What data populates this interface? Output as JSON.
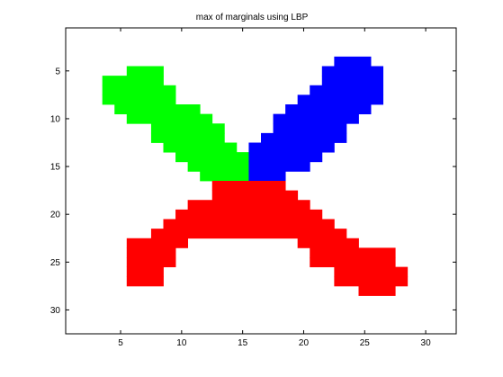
{
  "chart_data": {
    "type": "heatmap",
    "title": "max of marginals using LBP",
    "xlabel": "",
    "ylabel": "",
    "xlim": [
      0.5,
      32.5
    ],
    "ylim": [
      32.5,
      0.5
    ],
    "y_axis_direction": "reversed",
    "grid": false,
    "legend": "none",
    "xticks": [
      5,
      10,
      15,
      20,
      25,
      30
    ],
    "yticks": [
      5,
      10,
      15,
      20,
      25,
      30
    ],
    "colors": {
      "1": "#00ff00",
      "2": "#0000ff",
      "3": "#ff0000"
    },
    "regions": [
      {
        "label": 1,
        "runs": [
          [
            5,
            6,
            8
          ],
          [
            6,
            4,
            8
          ],
          [
            7,
            4,
            9
          ],
          [
            8,
            4,
            9
          ],
          [
            9,
            5,
            11
          ],
          [
            10,
            6,
            12
          ],
          [
            11,
            8,
            13
          ],
          [
            12,
            8,
            13
          ],
          [
            13,
            9,
            14
          ],
          [
            14,
            10,
            16
          ],
          [
            15,
            11,
            16
          ],
          [
            16,
            12,
            16
          ]
        ]
      },
      {
        "label": 2,
        "runs": [
          [
            4,
            23,
            25
          ],
          [
            5,
            22,
            26
          ],
          [
            6,
            22,
            26
          ],
          [
            7,
            21,
            26
          ],
          [
            8,
            20,
            26
          ],
          [
            9,
            19,
            25
          ],
          [
            10,
            18,
            24
          ],
          [
            11,
            18,
            23
          ],
          [
            12,
            17,
            23
          ],
          [
            13,
            16,
            22
          ],
          [
            14,
            16,
            21
          ],
          [
            15,
            16,
            20
          ],
          [
            16,
            16,
            18
          ]
        ]
      },
      {
        "label": 3,
        "runs": [
          [
            17,
            13,
            18
          ],
          [
            18,
            13,
            19
          ],
          [
            19,
            11,
            20
          ],
          [
            20,
            10,
            21
          ],
          [
            21,
            9,
            22
          ],
          [
            22,
            8,
            23
          ],
          [
            23,
            6,
            10
          ],
          [
            23,
            20,
            24
          ],
          [
            24,
            6,
            9
          ],
          [
            24,
            21,
            27
          ],
          [
            25,
            6,
            9
          ],
          [
            25,
            21,
            27
          ],
          [
            26,
            6,
            8
          ],
          [
            26,
            23,
            28
          ],
          [
            27,
            6,
            8
          ],
          [
            27,
            23,
            28
          ],
          [
            28,
            25,
            27
          ]
        ]
      }
    ]
  }
}
